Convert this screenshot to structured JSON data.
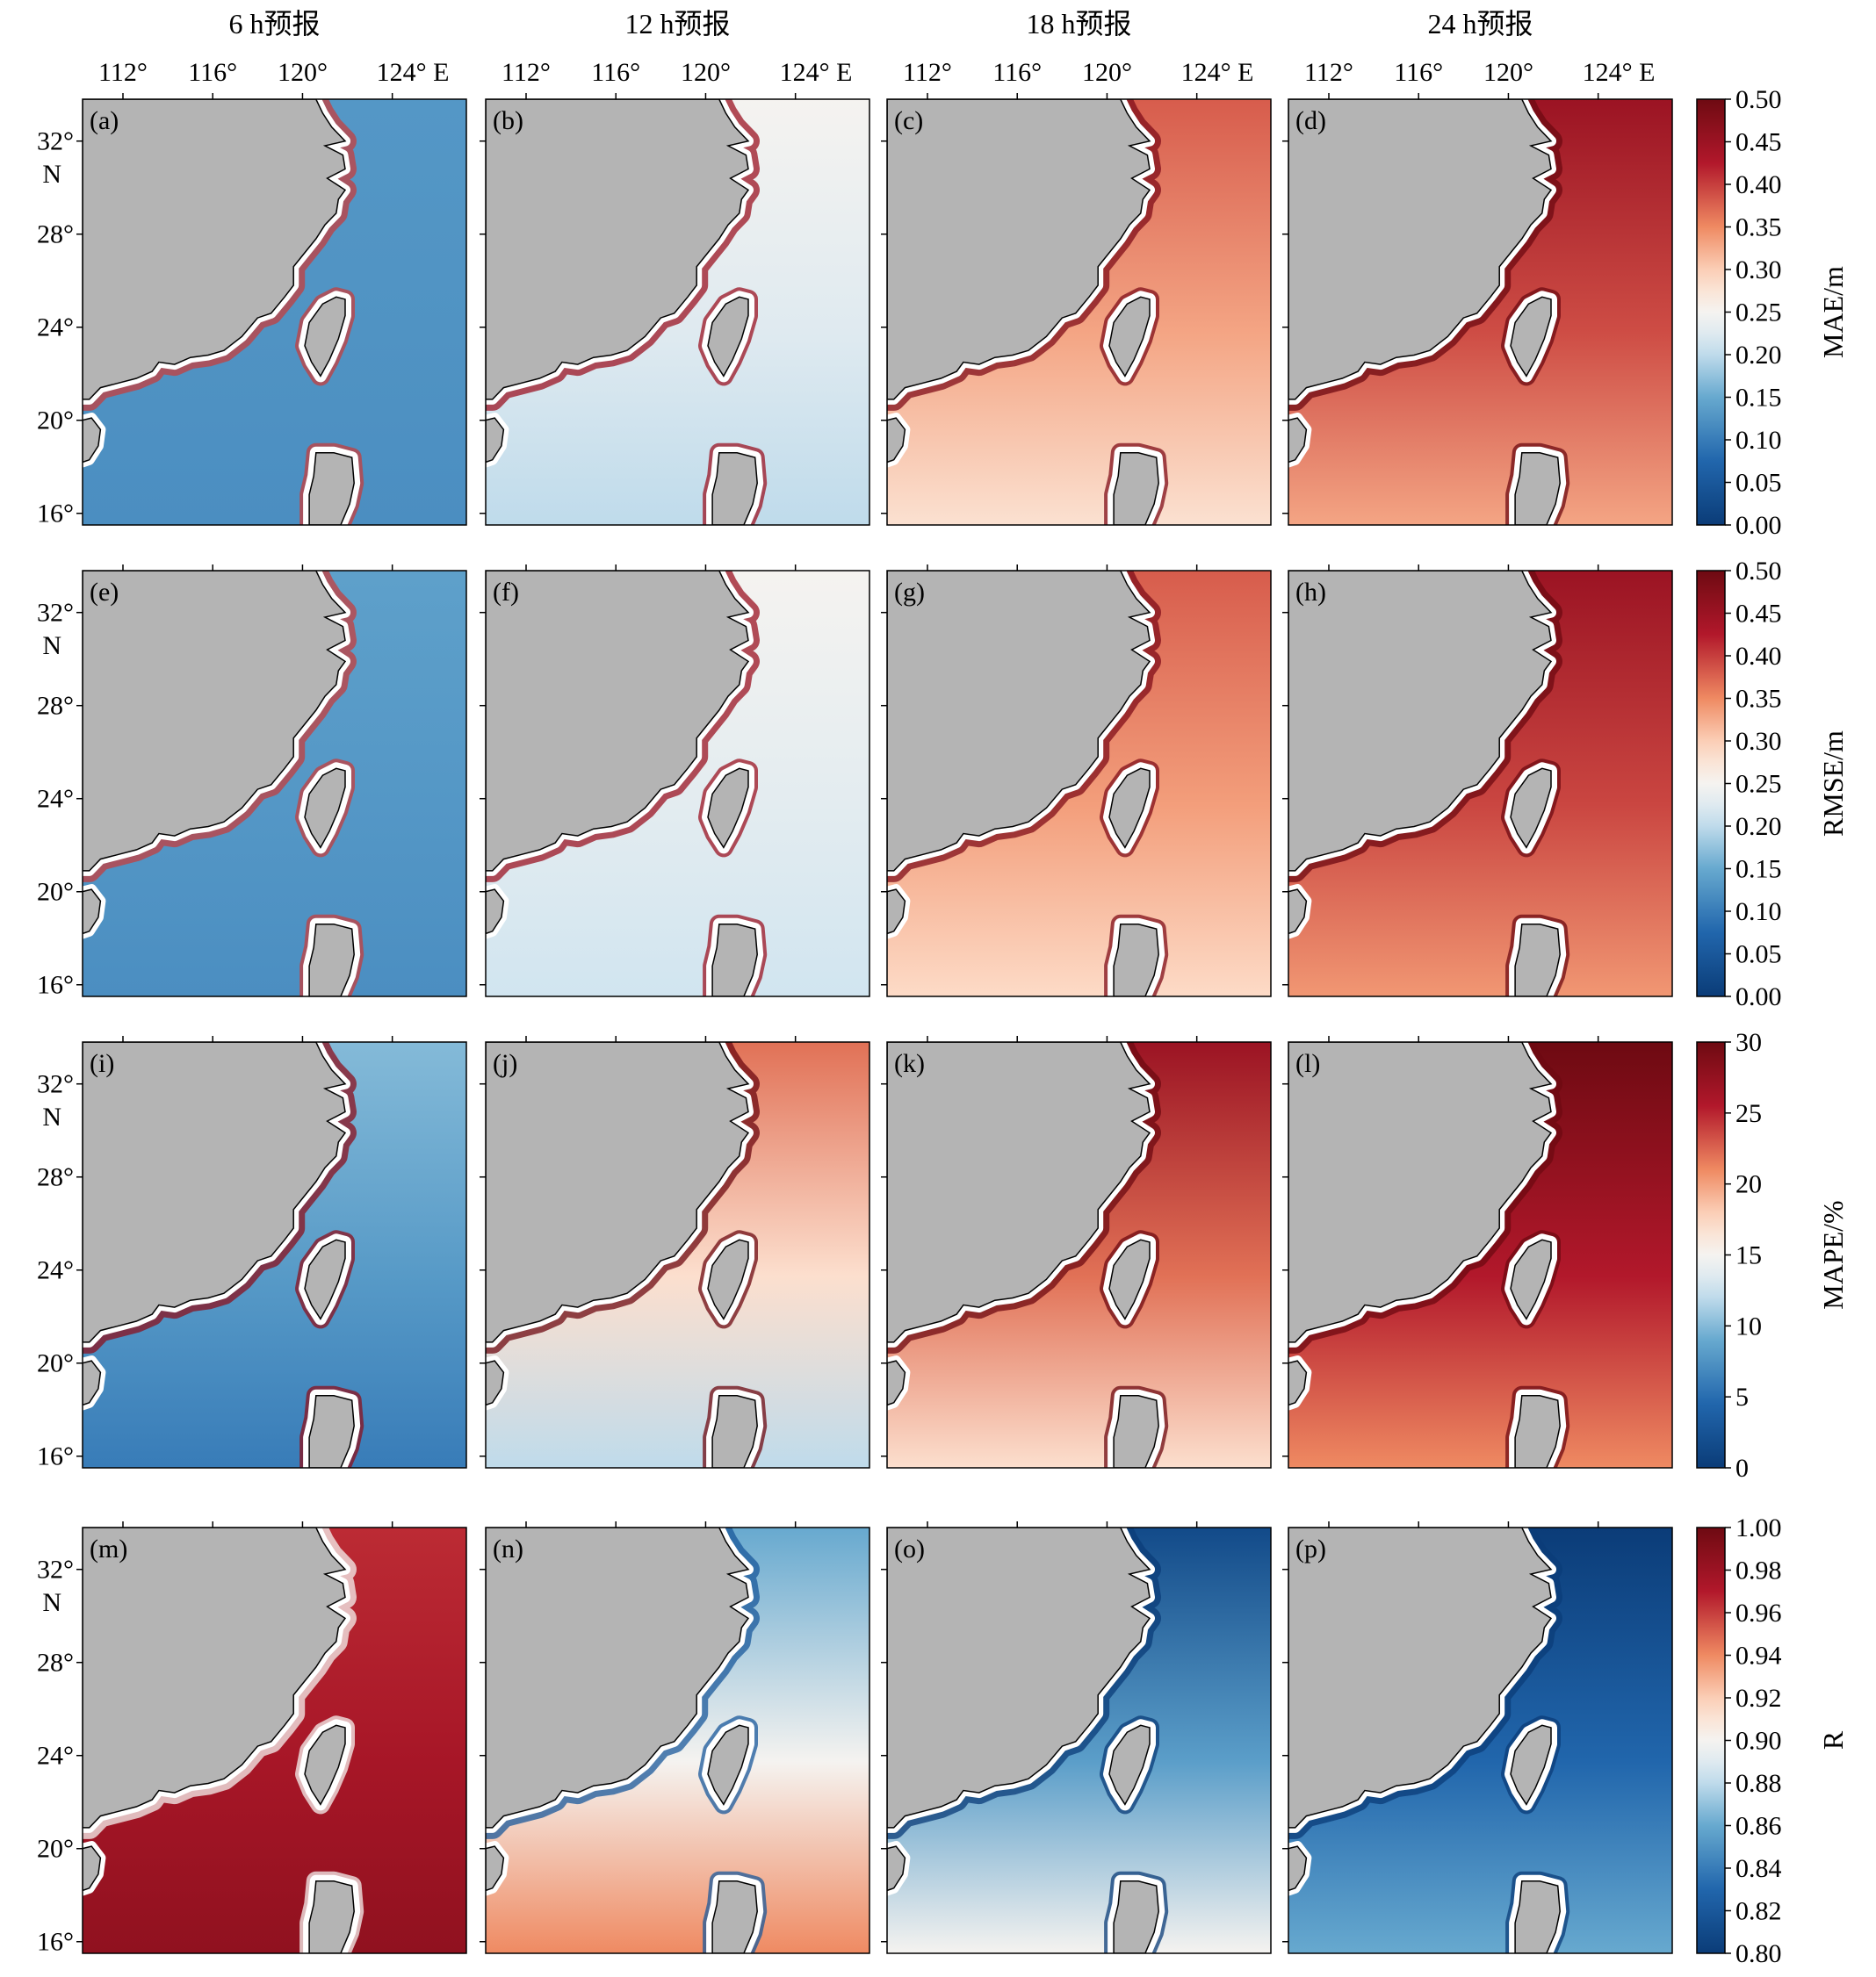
{
  "columns": [
    "6 h预报",
    "12 h预报",
    "18 h预报",
    "24 h预报"
  ],
  "lon_ticks": [
    "112°",
    "116°",
    "120°",
    "124° E"
  ],
  "lat_ticks": [
    "32°",
    "N",
    "28°",
    "24°",
    "20°",
    "16°"
  ],
  "panel_labels": [
    "(a)",
    "(b)",
    "(c)",
    "(d)",
    "(e)",
    "(f)",
    "(g)",
    "(h)",
    "(i)",
    "(j)",
    "(k)",
    "(l)",
    "(m)",
    "(n)",
    "(o)",
    "(p)"
  ],
  "colors": {
    "land": "#b4b4b4",
    "coast_mask": "#ffffff",
    "cmap_low": "#0b3c78",
    "cmap_mid": "#f5f3f0",
    "cmap_high": "#6e0a12"
  },
  "chart_data": [
    {
      "type": "heatmap",
      "metric": "MAE",
      "colorbar_label": "MAE/m",
      "colorbar_ticks": [
        "0.50",
        "0.45",
        "0.40",
        "0.35",
        "0.30",
        "0.25",
        "0.20",
        "0.15",
        "0.10",
        "0.05",
        "0.00"
      ],
      "range": [
        0,
        0.5
      ],
      "panels": [
        {
          "label": "(a)",
          "column": "6 h预报",
          "north_value": 0.13,
          "south_value": 0.12,
          "coastal_value": 0.4
        },
        {
          "label": "(b)",
          "column": "12 h预报",
          "north_value": 0.25,
          "south_value": 0.2,
          "coastal_value": 0.45
        },
        {
          "label": "(c)",
          "column": "18 h预报",
          "north_value": 0.38,
          "south_value": 0.28,
          "coastal_value": 0.48
        },
        {
          "label": "(d)",
          "column": "24 h预报",
          "north_value": 0.45,
          "south_value": 0.33,
          "coastal_value": 0.5
        }
      ]
    },
    {
      "type": "heatmap",
      "metric": "RMSE",
      "colorbar_label": "RMSE/m",
      "colorbar_ticks": [
        "0.50",
        "0.45",
        "0.40",
        "0.35",
        "0.30",
        "0.25",
        "0.20",
        "0.15",
        "0.10",
        "0.05",
        "0.00"
      ],
      "range": [
        0,
        0.5
      ],
      "panels": [
        {
          "label": "(e)",
          "column": "6 h预报",
          "north_value": 0.14,
          "south_value": 0.12,
          "coastal_value": 0.4
        },
        {
          "label": "(f)",
          "column": "12 h预报",
          "north_value": 0.25,
          "south_value": 0.21,
          "coastal_value": 0.45
        },
        {
          "label": "(g)",
          "column": "18 h预报",
          "north_value": 0.38,
          "south_value": 0.29,
          "coastal_value": 0.48
        },
        {
          "label": "(h)",
          "column": "24 h预报",
          "north_value": 0.45,
          "south_value": 0.34,
          "coastal_value": 0.5
        }
      ]
    },
    {
      "type": "heatmap",
      "metric": "MAPE",
      "colorbar_label": "MAPE/%",
      "colorbar_ticks": [
        "30",
        "25",
        "20",
        "15",
        "10",
        "5",
        "0"
      ],
      "range": [
        0,
        30
      ],
      "panels": [
        {
          "label": "(i)",
          "column": "6 h预报",
          "north_value": 10,
          "south_value": 6,
          "coastal_value": 28
        },
        {
          "label": "(j)",
          "column": "12 h预报",
          "north_value": 22,
          "south_value": 12,
          "coastal_value": 30
        },
        {
          "label": "(k)",
          "column": "18 h预报",
          "north_value": 27,
          "south_value": 17,
          "coastal_value": 30
        },
        {
          "label": "(l)",
          "column": "24 h预报",
          "north_value": 30,
          "south_value": 21,
          "coastal_value": 30
        }
      ]
    },
    {
      "type": "heatmap",
      "metric": "R",
      "colorbar_label": "R",
      "colorbar_ticks": [
        "1.00",
        "0.98",
        "0.96",
        "0.94",
        "0.92",
        "0.90",
        "0.88",
        "0.86",
        "0.84",
        "0.82",
        "0.80"
      ],
      "range": [
        0.8,
        1.0
      ],
      "panels": [
        {
          "label": "(m)",
          "column": "6 h预报",
          "north_value": 0.965,
          "south_value": 0.985,
          "coastal_value": 0.9
        },
        {
          "label": "(n)",
          "column": "12 h预报",
          "north_value": 0.86,
          "south_value": 0.94,
          "coastal_value": 0.82
        },
        {
          "label": "(o)",
          "column": "18 h预报",
          "north_value": 0.81,
          "south_value": 0.9,
          "coastal_value": 0.8
        },
        {
          "label": "(p)",
          "column": "24 h预报",
          "north_value": 0.8,
          "south_value": 0.86,
          "coastal_value": 0.8
        }
      ]
    }
  ]
}
